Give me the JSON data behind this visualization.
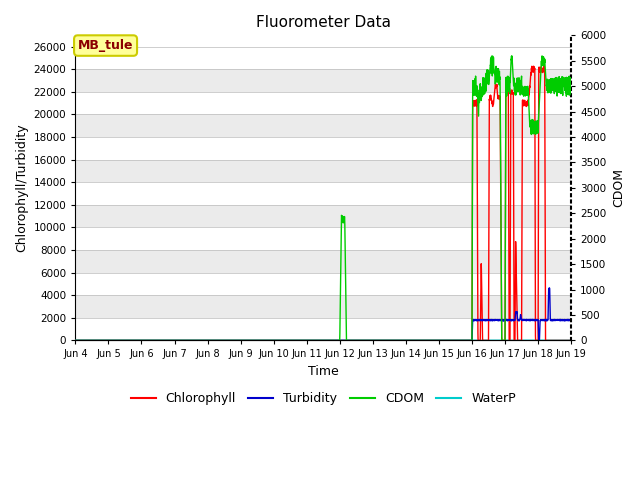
{
  "title": "Fluorometer Data",
  "xlabel": "Time",
  "ylabel_left": "Chlorophyll/Turbidity",
  "ylabel_right": "CDOM",
  "annotation": "MB_tule",
  "ylim_left": [
    0,
    27000
  ],
  "ylim_right": [
    0,
    6000
  ],
  "yticks_left": [
    0,
    2000,
    4000,
    6000,
    8000,
    10000,
    12000,
    14000,
    16000,
    18000,
    20000,
    22000,
    24000,
    26000
  ],
  "yticks_right": [
    0,
    500,
    1000,
    1500,
    2000,
    2500,
    3000,
    3500,
    4000,
    4500,
    5000,
    5500,
    6000
  ],
  "xtick_labels": [
    "Jun 4",
    "Jun 5",
    "Jun 6",
    "Jun 7",
    "Jun 8",
    "Jun 9",
    "Jun 10",
    "Jun 11",
    "Jun 12",
    "Jun 13",
    "Jun 14",
    "Jun 15",
    "Jun 16",
    "Jun 17",
    "Jun 18",
    "Jun 19"
  ],
  "colors": {
    "chlorophyll": "#ff0000",
    "turbidity": "#0000cc",
    "cdom": "#00cc00",
    "waterp": "#00cccc",
    "annotation_bg": "#ffff99",
    "annotation_border": "#cccc00",
    "grid_dark": "#d8d8d8",
    "grid_light": "#ffffff"
  },
  "legend_entries": [
    "Chlorophyll",
    "Turbidity",
    "CDOM",
    "WaterP"
  ]
}
